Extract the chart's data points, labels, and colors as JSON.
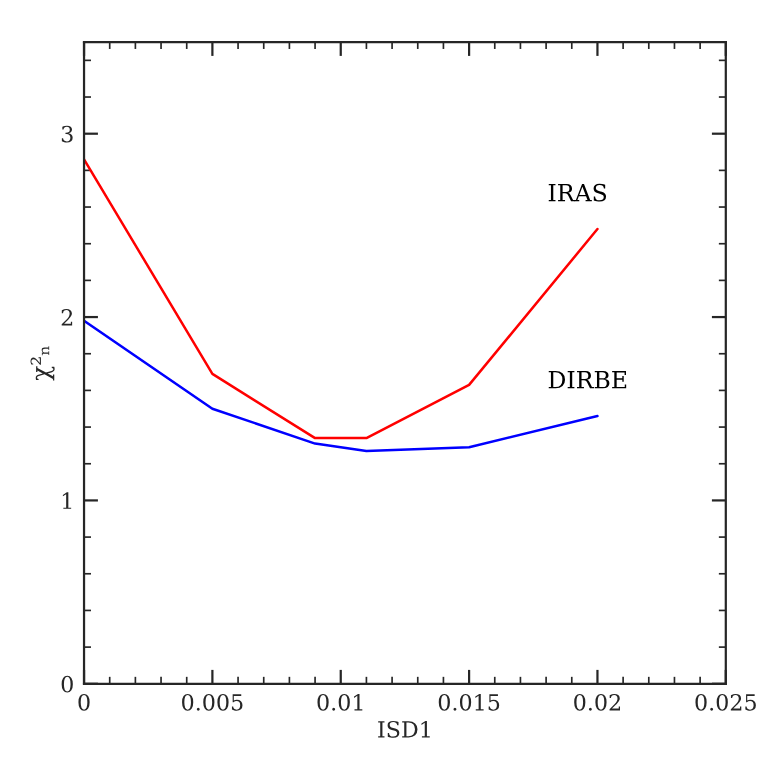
{
  "chart_data": {
    "type": "line",
    "xlabel": "ISD1",
    "ylabel": "χ²ₙ",
    "x": [
      0,
      0.005,
      0.009,
      0.011,
      0.015,
      0.02
    ],
    "series": [
      {
        "name": "IRAS",
        "color": "#ff0000",
        "values": [
          2.86,
          1.69,
          1.34,
          1.34,
          1.63,
          2.48
        ]
      },
      {
        "name": "DIRBE",
        "color": "#0000ff",
        "values": [
          1.98,
          1.5,
          1.31,
          1.27,
          1.29,
          1.46
        ]
      }
    ],
    "xlim": [
      0,
      0.025
    ],
    "xticks": [
      0,
      0.005,
      0.01,
      0.015,
      0.02,
      0.025
    ],
    "ylim": [
      0,
      3.5
    ],
    "yticks": [
      0,
      1,
      2,
      3
    ],
    "grid": false,
    "legend": false,
    "marker": "none",
    "line_style": "solid"
  }
}
